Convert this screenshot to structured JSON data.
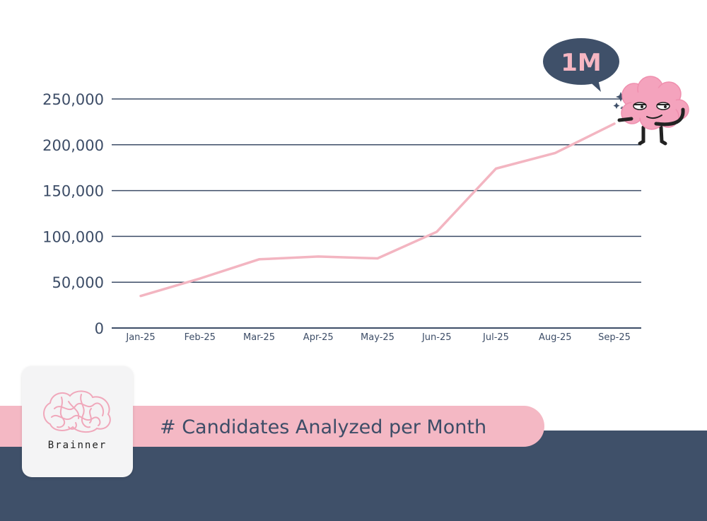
{
  "chart_data": {
    "type": "line",
    "categories": [
      "Jan-25",
      "Feb-25",
      "Mar-25",
      "Apr-25",
      "May-25",
      "Jun-25",
      "Jul-25",
      "Aug-25",
      "Sep-25"
    ],
    "series": [
      {
        "values": [
          35000,
          54000,
          75000,
          78000,
          76000,
          105000,
          174000,
          191000,
          223000
        ]
      }
    ],
    "y_ticks": [
      {
        "value": 0,
        "label": "0"
      },
      {
        "value": 50000,
        "label": "50,000"
      },
      {
        "value": 100000,
        "label": "100,000"
      },
      {
        "value": 150000,
        "label": "150,000"
      },
      {
        "value": 200000,
        "label": "200,000"
      },
      {
        "value": 250000,
        "label": "250,000"
      }
    ],
    "ylim": [
      0,
      250000
    ],
    "grid": true,
    "line_color": "#f3b5c1",
    "grid_color": "#3d4d67",
    "annotation": "1M"
  },
  "footer": {
    "title": "# Candidates Analyzed per Month",
    "logo_text": "Brainner"
  },
  "colors": {
    "navy": "#3f5069",
    "pink": "#f4b8c4",
    "brain_pink": "#f4a3bd"
  },
  "icons": {
    "mascot": "brain-mascot-icon",
    "logo": "brain-logo-icon"
  }
}
